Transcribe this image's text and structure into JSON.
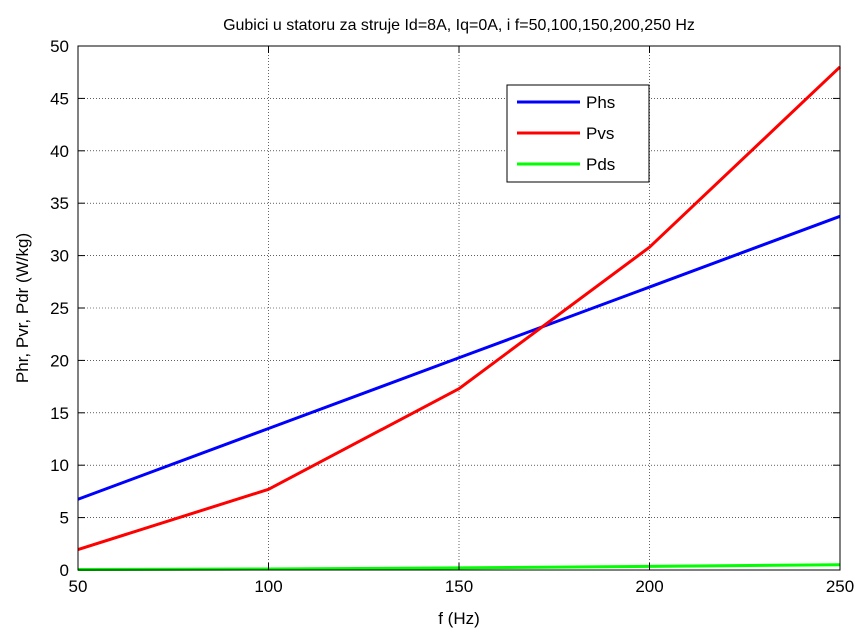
{
  "chart_data": {
    "type": "line",
    "title": "Gubici u statoru za struje Id=8A, Iq=0A, i f=50,100,150,200,250 Hz",
    "xlabel": "f (Hz)",
    "ylabel": "Phr, Pvr, Pdr (W/kg)",
    "x": [
      50,
      100,
      150,
      200,
      250
    ],
    "xlim": [
      50,
      250
    ],
    "ylim": [
      0,
      50
    ],
    "xticks": [
      50,
      100,
      150,
      200,
      250
    ],
    "yticks": [
      0,
      5,
      10,
      15,
      20,
      25,
      30,
      35,
      40,
      45,
      50
    ],
    "grid": true,
    "legend_position": "top-right",
    "series": [
      {
        "name": "Phs",
        "color": "#0000ff",
        "values": [
          6.75,
          13.5,
          20.25,
          27.0,
          33.75
        ]
      },
      {
        "name": "Pvs",
        "color": "#ff0000",
        "values": [
          1.95,
          7.7,
          17.3,
          30.8,
          48.0
        ]
      },
      {
        "name": "Pds",
        "color": "#00ff00",
        "values": [
          0.05,
          0.1,
          0.2,
          0.35,
          0.5
        ]
      }
    ]
  }
}
